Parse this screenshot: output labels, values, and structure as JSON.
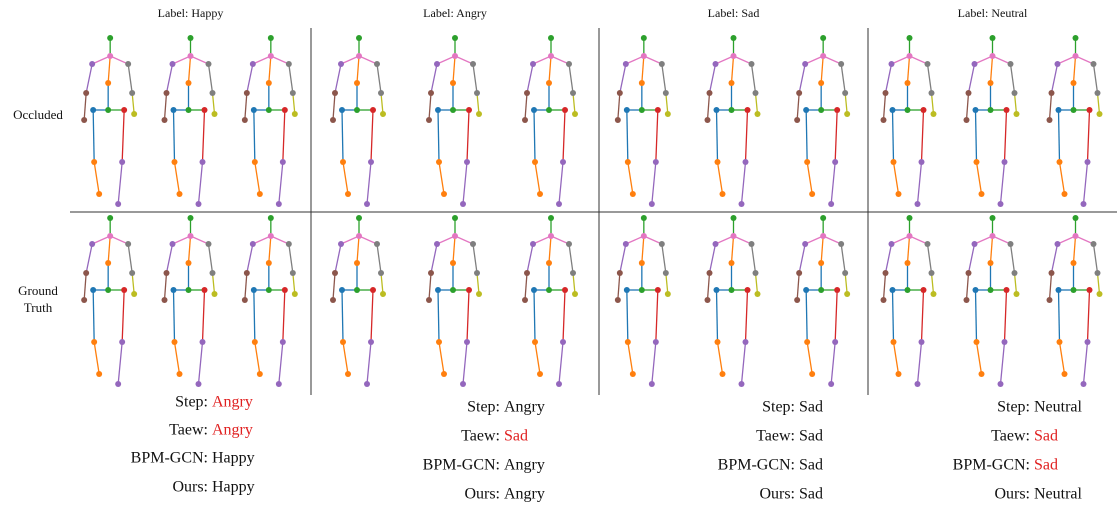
{
  "rows": [
    "Occluded",
    "Ground Truth"
  ],
  "columns": [
    {
      "label": "Label: Happy",
      "predictions": [
        {
          "method": "Step:",
          "result": "Angry",
          "color": "#e02020"
        },
        {
          "method": "Taew:",
          "result": "Angry",
          "color": "#e02020"
        },
        {
          "method": "BPM-GCN:",
          "result": "Happy",
          "color": "#111111"
        },
        {
          "method": "Ours:",
          "result": "Happy",
          "color": "#111111"
        }
      ]
    },
    {
      "label": "Label: Angry",
      "predictions": [
        {
          "method": "Step:",
          "result": "Angry",
          "color": "#111111"
        },
        {
          "method": "Taew:",
          "result": "Sad",
          "color": "#e02020"
        },
        {
          "method": "BPM-GCN:",
          "result": "Angry",
          "color": "#111111"
        },
        {
          "method": "Ours:",
          "result": "Angry",
          "color": "#111111"
        }
      ]
    },
    {
      "label": "Label: Sad",
      "predictions": [
        {
          "method": "Step:",
          "result": "Sad",
          "color": "#111111"
        },
        {
          "method": "Taew:",
          "result": "Sad",
          "color": "#111111"
        },
        {
          "method": "BPM-GCN:",
          "result": "Sad",
          "color": "#111111"
        },
        {
          "method": "Ours:",
          "result": "Sad",
          "color": "#111111"
        }
      ]
    },
    {
      "label": "Label: Neutral",
      "predictions": [
        {
          "method": "Step:",
          "result": "Neutral",
          "color": "#111111"
        },
        {
          "method": "Taew:",
          "result": "Sad",
          "color": "#e02020"
        },
        {
          "method": "BPM-GCN:",
          "result": "Sad",
          "color": "#e02020"
        },
        {
          "method": "Ours:",
          "result": "Neutral",
          "color": "#111111"
        }
      ]
    }
  ]
}
